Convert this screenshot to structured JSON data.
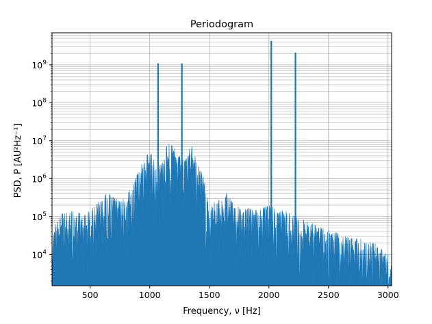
{
  "chart_data": {
    "type": "line",
    "title": "Periodogram",
    "xlabel": "Frequency, ν [Hz]",
    "ylabel": "PSD, P [AU²Hz⁻¹]",
    "x_ticks": [
      500,
      1000,
      1500,
      2000,
      2500,
      3000
    ],
    "y_ticks": [
      "10^4",
      "10^5",
      "10^6",
      "10^7",
      "10^8",
      "10^9"
    ],
    "xlim": [
      180,
      3030
    ],
    "ylim": [
      1500,
      7000000000
    ],
    "y_scale": "log",
    "grid": "major and minor",
    "series_color": "#1f77b4",
    "peaks": [
      {
        "x": 1070,
        "y": 1100000000
      },
      {
        "x": 1270,
        "y": 1100000000
      },
      {
        "x": 2020,
        "y": 4300000000
      },
      {
        "x": 2223,
        "y": 2100000000
      }
    ],
    "envelope": {
      "x": [
        180,
        250,
        350,
        450,
        550,
        650,
        750,
        850,
        950,
        1000,
        1050,
        1100,
        1150,
        1200,
        1250,
        1300,
        1350,
        1400,
        1450,
        1500,
        1550,
        1600,
        1650,
        1700,
        1800,
        1900,
        2000,
        2100,
        2200,
        2300,
        2400,
        2500,
        2600,
        2700,
        2800,
        2900,
        3030
      ],
      "y": [
        60000,
        120000,
        140000,
        120000,
        220000,
        450000,
        250000,
        600000,
        3500000,
        6000000,
        2500000,
        3000000,
        9000000,
        7000000,
        4000000,
        3000000,
        9000000,
        2500000,
        1200000,
        200000,
        250000,
        300000,
        450000,
        220000,
        180000,
        150000,
        200000,
        160000,
        120000,
        80000,
        60000,
        45000,
        35000,
        28000,
        25000,
        20000,
        8000
      ]
    }
  }
}
